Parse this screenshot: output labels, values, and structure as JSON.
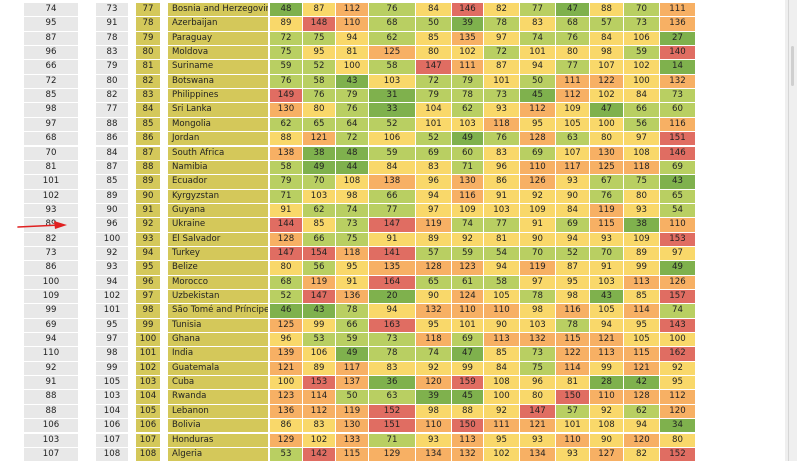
{
  "colors": {
    "band_left": "#e8e8e8",
    "band_name": "#d4c85a",
    "cell_dark_green": "#7fb14d",
    "cell_light_green": "#b9cf62",
    "cell_yellow": "#f9d86a",
    "cell_orange": "#f7b064",
    "cell_red": "#e06d62",
    "arrow": "#e02020"
  },
  "table": {
    "rows": [
      {
        "a": "74",
        "b": "73",
        "c": "77",
        "name": "Bosnia and Herzegovina",
        "v": [
          "48",
          "87",
          "112",
          "76",
          "84",
          "146",
          "82",
          "77",
          "47",
          "88",
          "70",
          "111"
        ]
      },
      {
        "a": "95",
        "b": "91",
        "c": "78",
        "name": "Azerbaijan",
        "v": [
          "89",
          "148",
          "110",
          "68",
          "50",
          "39",
          "78",
          "83",
          "68",
          "57",
          "73",
          "136"
        ]
      },
      {
        "a": "87",
        "b": "78",
        "c": "79",
        "name": "Paraguay",
        "v": [
          "72",
          "75",
          "94",
          "62",
          "85",
          "135",
          "97",
          "74",
          "76",
          "84",
          "106",
          "27"
        ]
      },
      {
        "a": "96",
        "b": "83",
        "c": "80",
        "name": "Moldova",
        "v": [
          "75",
          "95",
          "81",
          "125",
          "80",
          "102",
          "72",
          "101",
          "80",
          "98",
          "59",
          "140"
        ]
      },
      {
        "a": "66",
        "b": "79",
        "c": "81",
        "name": "Suriname",
        "v": [
          "59",
          "52",
          "100",
          "58",
          "147",
          "111",
          "87",
          "94",
          "77",
          "107",
          "102",
          "14"
        ]
      },
      {
        "a": "72",
        "b": "80",
        "c": "82",
        "name": "Botswana",
        "v": [
          "76",
          "58",
          "43",
          "103",
          "72",
          "79",
          "101",
          "50",
          "111",
          "122",
          "100",
          "132"
        ]
      },
      {
        "a": "85",
        "b": "82",
        "c": "83",
        "name": "Philippines",
        "v": [
          "149",
          "76",
          "79",
          "31",
          "79",
          "78",
          "73",
          "45",
          "112",
          "102",
          "84",
          "73"
        ]
      },
      {
        "a": "98",
        "b": "77",
        "c": "84",
        "name": "Sri Lanka",
        "v": [
          "130",
          "80",
          "76",
          "33",
          "104",
          "62",
          "93",
          "112",
          "109",
          "47",
          "66",
          "60"
        ]
      },
      {
        "a": "97",
        "b": "88",
        "c": "85",
        "name": "Mongolia",
        "v": [
          "62",
          "65",
          "64",
          "52",
          "101",
          "103",
          "118",
          "95",
          "105",
          "100",
          "56",
          "116"
        ]
      },
      {
        "a": "68",
        "b": "86",
        "c": "86",
        "name": "Jordan",
        "v": [
          "88",
          "121",
          "72",
          "106",
          "52",
          "49",
          "76",
          "128",
          "63",
          "80",
          "97",
          "151"
        ]
      },
      {
        "a": "70",
        "b": "84",
        "c": "87",
        "name": "South Africa",
        "v": [
          "138",
          "38",
          "48",
          "59",
          "69",
          "60",
          "83",
          "69",
          "107",
          "130",
          "108",
          "146"
        ]
      },
      {
        "a": "81",
        "b": "87",
        "c": "88",
        "name": "Namibia",
        "v": [
          "58",
          "49",
          "44",
          "84",
          "83",
          "71",
          "96",
          "110",
          "117",
          "125",
          "118",
          "69"
        ]
      },
      {
        "a": "101",
        "b": "85",
        "c": "89",
        "name": "Ecuador",
        "v": [
          "79",
          "70",
          "108",
          "138",
          "96",
          "130",
          "86",
          "126",
          "93",
          "67",
          "75",
          "43"
        ]
      },
      {
        "a": "102",
        "b": "89",
        "c": "90",
        "name": "Kyrgyzstan",
        "v": [
          "71",
          "103",
          "98",
          "66",
          "94",
          "116",
          "91",
          "92",
          "90",
          "76",
          "80",
          "65"
        ]
      },
      {
        "a": "93",
        "b": "90",
        "c": "91",
        "name": "Guyana",
        "v": [
          "91",
          "62",
          "74",
          "77",
          "97",
          "109",
          "103",
          "109",
          "84",
          "119",
          "93",
          "54"
        ]
      },
      {
        "a": "89",
        "b": "96",
        "c": "92",
        "name": "Ukraine",
        "v": [
          "144",
          "85",
          "73",
          "147",
          "119",
          "74",
          "77",
          "91",
          "69",
          "115",
          "38",
          "110"
        ]
      },
      {
        "a": "82",
        "b": "100",
        "c": "93",
        "name": "El Salvador",
        "v": [
          "128",
          "66",
          "75",
          "91",
          "89",
          "92",
          "81",
          "90",
          "94",
          "93",
          "109",
          "153"
        ]
      },
      {
        "a": "73",
        "b": "92",
        "c": "94",
        "name": "Turkey",
        "v": [
          "147",
          "154",
          "118",
          "141",
          "57",
          "59",
          "54",
          "70",
          "52",
          "70",
          "89",
          "97"
        ]
      },
      {
        "a": "86",
        "b": "93",
        "c": "95",
        "name": "Belize",
        "v": [
          "80",
          "56",
          "95",
          "135",
          "128",
          "123",
          "94",
          "119",
          "87",
          "91",
          "99",
          "49"
        ]
      },
      {
        "a": "100",
        "b": "94",
        "c": "96",
        "name": "Morocco",
        "v": [
          "68",
          "119",
          "91",
          "164",
          "65",
          "61",
          "58",
          "97",
          "95",
          "103",
          "113",
          "126"
        ]
      },
      {
        "a": "109",
        "b": "102",
        "c": "97",
        "name": "Uzbekistan",
        "v": [
          "52",
          "147",
          "136",
          "20",
          "90",
          "124",
          "105",
          "78",
          "98",
          "43",
          "85",
          "157"
        ]
      },
      {
        "a": "99",
        "b": "101",
        "c": "98",
        "name": "São Tomé and Príncipe",
        "v": [
          "46",
          "43",
          "78",
          "94",
          "132",
          "110",
          "110",
          "98",
          "116",
          "105",
          "114",
          "74"
        ]
      },
      {
        "a": "69",
        "b": "95",
        "c": "99",
        "name": "Tunisia",
        "v": [
          "125",
          "99",
          "66",
          "163",
          "95",
          "101",
          "90",
          "103",
          "78",
          "94",
          "95",
          "143"
        ]
      },
      {
        "a": "94",
        "b": "97",
        "c": "100",
        "name": "Ghana",
        "v": [
          "96",
          "53",
          "59",
          "73",
          "118",
          "69",
          "113",
          "132",
          "115",
          "121",
          "105",
          "100"
        ]
      },
      {
        "a": "110",
        "b": "98",
        "c": "101",
        "name": "India",
        "v": [
          "139",
          "106",
          "49",
          "78",
          "74",
          "47",
          "85",
          "73",
          "122",
          "113",
          "115",
          "162"
        ]
      },
      {
        "a": "92",
        "b": "99",
        "c": "102",
        "name": "Guatemala",
        "v": [
          "121",
          "89",
          "117",
          "83",
          "92",
          "99",
          "84",
          "75",
          "114",
          "99",
          "121",
          "92"
        ]
      },
      {
        "a": "91",
        "b": "105",
        "c": "103",
        "name": "Cuba",
        "v": [
          "100",
          "153",
          "137",
          "36",
          "120",
          "159",
          "108",
          "96",
          "81",
          "28",
          "42",
          "95"
        ]
      },
      {
        "a": "88",
        "b": "103",
        "c": "104",
        "name": "Rwanda",
        "v": [
          "123",
          "114",
          "50",
          "63",
          "39",
          "45",
          "100",
          "80",
          "150",
          "110",
          "128",
          "112"
        ]
      },
      {
        "a": "88",
        "b": "104",
        "c": "105",
        "name": "Lebanon",
        "v": [
          "136",
          "112",
          "119",
          "152",
          "98",
          "88",
          "92",
          "147",
          "57",
          "92",
          "62",
          "120"
        ]
      },
      {
        "a": "106",
        "b": "106",
        "c": "106",
        "name": "Bolivia",
        "v": [
          "86",
          "83",
          "130",
          "151",
          "110",
          "150",
          "111",
          "121",
          "101",
          "108",
          "94",
          "34"
        ]
      },
      {
        "a": "103",
        "b": "107",
        "c": "107",
        "name": "Honduras",
        "v": [
          "129",
          "102",
          "133",
          "71",
          "93",
          "113",
          "95",
          "93",
          "110",
          "90",
          "120",
          "80"
        ]
      },
      {
        "a": "107",
        "b": "108",
        "c": "108",
        "name": "Algeria",
        "v": [
          "53",
          "142",
          "115",
          "129",
          "134",
          "132",
          "102",
          "134",
          "93",
          "127",
          "82",
          "152"
        ]
      }
    ]
  }
}
